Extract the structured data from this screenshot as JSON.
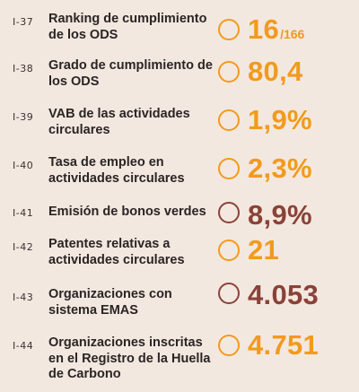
{
  "colors": {
    "orange": "#f29a1e",
    "brown": "#8a4238",
    "background": "#f3e8df",
    "text": "#2a2425"
  },
  "indicators": [
    {
      "code": "I-37",
      "label": "Ranking de cumplimiento de los ODS",
      "value": "16",
      "unit": "/166",
      "color": "orange",
      "icon": "ring-icon"
    },
    {
      "code": "I-38",
      "label": "Grado de cumplimiento de los ODS",
      "value": "80,4",
      "unit": "",
      "color": "orange",
      "icon": "ring-icon"
    },
    {
      "code": "I-39",
      "label": "VAB de las actividades circulares",
      "value": "1,9%",
      "unit": "",
      "color": "orange",
      "icon": "ring-icon"
    },
    {
      "code": "I-40",
      "label": "Tasa de empleo en actividades circulares",
      "value": "2,3%",
      "unit": "",
      "color": "orange",
      "icon": "ring-icon"
    },
    {
      "code": "I-41",
      "label": "Emisión de bonos verdes",
      "value": "8,9%",
      "unit": "",
      "color": "brown",
      "icon": "ring-icon"
    },
    {
      "code": "I-42",
      "label": "Patentes relativas a actividades circulares",
      "value": "21",
      "unit": "",
      "color": "orange",
      "icon": "ring-icon"
    },
    {
      "code": "I-43",
      "label": "Organizaciones con sistema EMAS",
      "value": "4.053",
      "unit": "",
      "color": "brown",
      "icon": "ring-icon"
    },
    {
      "code": "I-44",
      "label": "Organizaciones inscritas en el Registro de la Huella de Carbono",
      "value": "4.751",
      "unit": "",
      "color": "orange",
      "icon": "ring-icon"
    }
  ]
}
